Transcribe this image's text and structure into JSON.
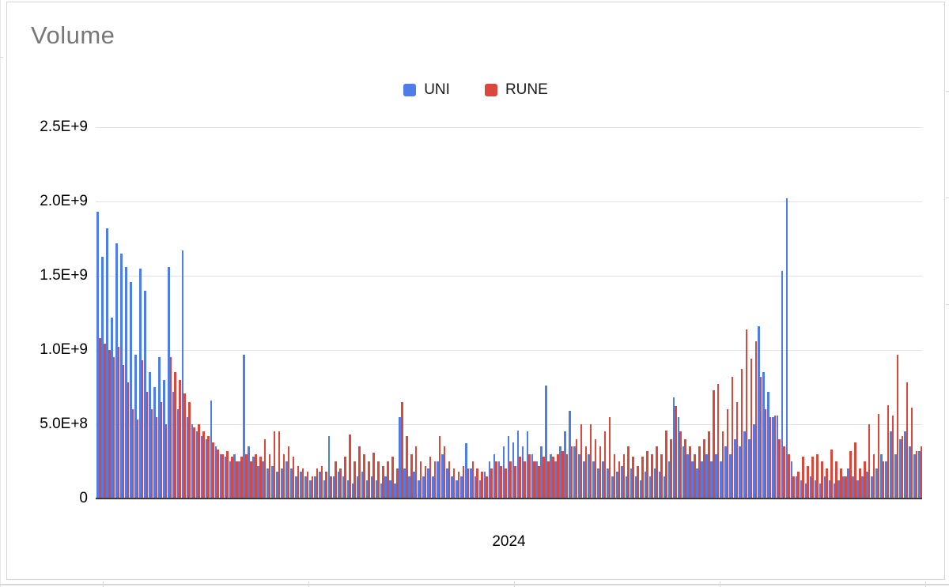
{
  "chart": {
    "title": "Volume",
    "x_label": "2024"
  },
  "colors": {
    "uni_blue": "#4c7de8",
    "rune_red": "#d9483b",
    "title_text": "#777777",
    "gridline": "#e2e2e2",
    "axis_baseline": "#3b3b3b"
  },
  "chart_data": {
    "type": "bar",
    "title": "Volume",
    "xlabel": "2024",
    "ylabel": "",
    "grid": true,
    "legend_position": "top-center",
    "x_ticks": [
      "2024"
    ],
    "ylim": [
      0,
      2500000000
    ],
    "value_unit": 1000000000,
    "y_ticks": [
      {
        "label": "0",
        "value": 0
      },
      {
        "label": "5.0E+8",
        "value": 500000000
      },
      {
        "label": "1.0E+9",
        "value": 1000000000
      },
      {
        "label": "1.5E+9",
        "value": 1500000000
      },
      {
        "label": "2.0E+9",
        "value": 2000000000
      },
      {
        "label": "2.5E+9",
        "value": 2500000000
      }
    ],
    "note": "values in billions (multiply by value_unit); ~175 daily bars across 2024, x tick shows year only",
    "series": [
      {
        "name": "UNI",
        "color": "#4c7de8",
        "values": [
          1.93,
          1.63,
          1.82,
          1.22,
          1.72,
          1.65,
          1.56,
          1.46,
          0.97,
          1.55,
          1.4,
          0.85,
          0.75,
          0.95,
          0.8,
          1.56,
          0.72,
          0.6,
          1.67,
          0.55,
          0.5,
          0.45,
          0.42,
          0.4,
          0.66,
          0.35,
          0.3,
          0.28,
          0.25,
          0.3,
          0.25,
          0.97,
          0.35,
          0.28,
          0.22,
          0.25,
          0.2,
          0.22,
          0.18,
          0.2,
          0.25,
          0.2,
          0.15,
          0.18,
          0.15,
          0.12,
          0.15,
          0.18,
          0.12,
          0.42,
          0.15,
          0.18,
          0.15,
          0.12,
          0.1,
          0.15,
          0.18,
          0.12,
          0.15,
          0.12,
          0.1,
          0.15,
          0.12,
          0.1,
          0.55,
          0.2,
          0.15,
          0.18,
          0.12,
          0.15,
          0.2,
          0.15,
          0.25,
          0.3,
          0.2,
          0.15,
          0.12,
          0.15,
          0.37,
          0.2,
          0.15,
          0.12,
          0.18,
          0.25,
          0.3,
          0.25,
          0.35,
          0.42,
          0.38,
          0.46,
          0.35,
          0.45,
          0.3,
          0.25,
          0.35,
          0.76,
          0.3,
          0.25,
          0.35,
          0.45,
          0.59,
          0.35,
          0.3,
          0.25,
          0.3,
          0.25,
          0.2,
          0.25,
          0.2,
          0.15,
          0.18,
          0.22,
          0.15,
          0.2,
          0.15,
          0.12,
          0.18,
          0.15,
          0.2,
          0.18,
          0.15,
          0.25,
          0.68,
          0.55,
          0.35,
          0.3,
          0.25,
          0.2,
          0.25,
          0.3,
          0.25,
          0.3,
          0.25,
          0.35,
          0.3,
          0.4,
          0.35,
          0.45,
          0.4,
          0.5,
          1.16,
          0.85,
          0.72,
          0.55,
          0.56,
          1.53,
          2.02,
          0.25,
          0.15,
          0.12,
          0.1,
          0.15,
          0.12,
          0.1,
          0.15,
          0.12,
          0.1,
          0.12,
          0.15,
          0.2,
          0.15,
          0.12,
          0.15,
          0.18,
          0.15,
          0.2,
          0.3,
          0.25,
          0.45,
          0.3,
          0.4,
          0.45,
          0.35,
          0.3,
          0.32
        ]
      },
      {
        "name": "RUNE",
        "color": "#d9483b",
        "values": [
          1.08,
          1.04,
          1.0,
          0.95,
          1.02,
          0.9,
          0.78,
          0.6,
          0.53,
          0.93,
          0.72,
          0.6,
          0.55,
          0.65,
          0.5,
          0.95,
          0.85,
          0.8,
          0.71,
          0.65,
          0.48,
          0.5,
          0.45,
          0.42,
          0.38,
          0.33,
          0.3,
          0.32,
          0.28,
          0.25,
          0.28,
          0.3,
          0.25,
          0.3,
          0.28,
          0.4,
          0.3,
          0.45,
          0.45,
          0.3,
          0.35,
          0.28,
          0.22,
          0.2,
          0.18,
          0.15,
          0.2,
          0.22,
          0.18,
          0.15,
          0.25,
          0.2,
          0.28,
          0.43,
          0.25,
          0.35,
          0.3,
          0.25,
          0.31,
          0.25,
          0.22,
          0.25,
          0.28,
          0.2,
          0.65,
          0.42,
          0.3,
          0.35,
          0.25,
          0.22,
          0.28,
          0.25,
          0.42,
          0.35,
          0.25,
          0.2,
          0.18,
          0.22,
          0.2,
          0.25,
          0.2,
          0.18,
          0.15,
          0.2,
          0.25,
          0.22,
          0.2,
          0.25,
          0.22,
          0.28,
          0.25,
          0.3,
          0.25,
          0.22,
          0.28,
          0.25,
          0.28,
          0.3,
          0.32,
          0.3,
          0.35,
          0.4,
          0.5,
          0.35,
          0.5,
          0.4,
          0.35,
          0.45,
          0.55,
          0.3,
          0.25,
          0.3,
          0.35,
          0.28,
          0.22,
          0.28,
          0.32,
          0.3,
          0.35,
          0.3,
          0.46,
          0.4,
          0.62,
          0.45,
          0.4,
          0.35,
          0.3,
          0.35,
          0.4,
          0.45,
          0.73,
          0.77,
          0.45,
          0.6,
          0.82,
          0.65,
          0.87,
          1.14,
          0.94,
          1.06,
          0.82,
          0.6,
          0.55,
          0.56,
          0.4,
          0.35,
          0.3,
          0.15,
          0.18,
          0.28,
          0.22,
          0.28,
          0.3,
          0.25,
          0.2,
          0.33,
          0.25,
          0.2,
          0.15,
          0.32,
          0.38,
          0.2,
          0.25,
          0.5,
          0.3,
          0.57,
          0.25,
          0.63,
          0.56,
          0.97,
          0.42,
          0.78,
          0.61,
          0.32,
          0.35
        ]
      }
    ]
  }
}
